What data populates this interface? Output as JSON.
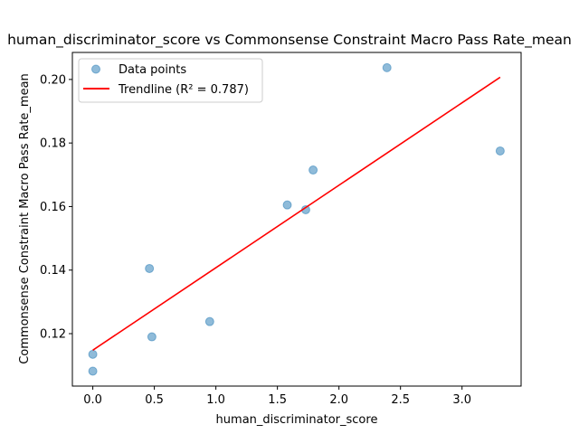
{
  "chart_data": {
    "type": "scatter",
    "title": "human_discriminator_score vs Commonsense Constraint Macro Pass Rate_mean",
    "xlabel": "human_discriminator_score",
    "ylabel": "Commonsense Constraint Macro Pass Rate_mean",
    "xlim": [
      -0.166,
      3.48
    ],
    "ylim": [
      0.1035,
      0.2085
    ],
    "xticks": [
      0.0,
      0.5,
      1.0,
      1.5,
      2.0,
      2.5,
      3.0
    ],
    "xtick_labels": [
      "0.0",
      "0.5",
      "1.0",
      "1.5",
      "2.0",
      "2.5",
      "3.0"
    ],
    "yticks": [
      0.12,
      0.14,
      0.16,
      0.18,
      0.2
    ],
    "ytick_labels": [
      "0.12",
      "0.14",
      "0.16",
      "0.18",
      "0.20"
    ],
    "grid": false,
    "legend_position": "top-left",
    "series": [
      {
        "name": "Data points",
        "kind": "scatter",
        "color": "#1f77b4",
        "points": [
          {
            "x": 0.0,
            "y": 0.1135
          },
          {
            "x": 0.0,
            "y": 0.1082
          },
          {
            "x": 0.46,
            "y": 0.1405
          },
          {
            "x": 0.48,
            "y": 0.119
          },
          {
            "x": 0.95,
            "y": 0.1238
          },
          {
            "x": 1.58,
            "y": 0.1605
          },
          {
            "x": 1.73,
            "y": 0.159
          },
          {
            "x": 1.79,
            "y": 0.1715
          },
          {
            "x": 2.39,
            "y": 0.2037
          },
          {
            "x": 3.31,
            "y": 0.1775
          }
        ]
      },
      {
        "name": "Trendline (R² = 0.787)",
        "kind": "line",
        "color": "#ff0000",
        "points": [
          {
            "x": 0.0,
            "y": 0.1148
          },
          {
            "x": 3.31,
            "y": 0.2007
          }
        ]
      }
    ]
  }
}
